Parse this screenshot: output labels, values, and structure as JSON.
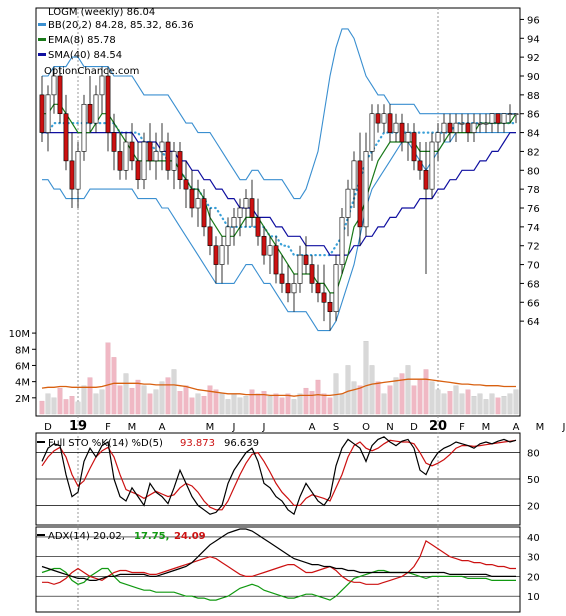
{
  "chart_data": {
    "type": "candlestick",
    "symbol_title": "LOGM (weekly) 86.04",
    "website": "OptionChance.com",
    "legend": {
      "bb": "BB(20,2) 84.28, 85.32, 86.36",
      "ema": "EMA(8) 85.78",
      "sma": "SMA(40) 84.54"
    },
    "colors": {
      "up": "#ffffff",
      "down": "#cc1111",
      "bb": "#3a8fd0",
      "bb_mid": "#3aa0d8",
      "ema": "#1a7a1a",
      "sma": "#1010a0",
      "vol_up": "#d8d8d8",
      "vol_down": "#f0b8c4",
      "vol_avg": "#d86010",
      "pctK": "#000000",
      "pctD": "#cc1111",
      "adx": "#000000",
      "plus_di": "#119911",
      "minus_di": "#cc1111"
    },
    "price_axis": {
      "ylim": [
        62,
        97
      ],
      "ticks": [
        64,
        66,
        68,
        70,
        72,
        74,
        76,
        78,
        80,
        82,
        84,
        86,
        88,
        90,
        92,
        94,
        96
      ]
    },
    "x_labels": [
      {
        "week": 1,
        "label": "D"
      },
      {
        "week": 6,
        "label": "19",
        "year": true
      },
      {
        "week": 11,
        "label": "F"
      },
      {
        "week": 15,
        "label": "M"
      },
      {
        "week": 20,
        "label": "A"
      },
      {
        "week": 28,
        "label": "M"
      },
      {
        "week": 32,
        "label": "J"
      },
      {
        "week": 37,
        "label": "J"
      },
      {
        "week": 45,
        "label": "A"
      },
      {
        "week": 49,
        "label": "S"
      },
      {
        "week": 54,
        "label": "O"
      },
      {
        "week": 58,
        "label": "N"
      },
      {
        "week": 62,
        "label": "D"
      },
      {
        "week": 66,
        "label": "20",
        "year": true
      },
      {
        "week": 70,
        "label": "F"
      },
      {
        "week": 74,
        "label": "M"
      },
      {
        "week": 79,
        "label": "A"
      },
      {
        "week": 83,
        "label": "M"
      },
      {
        "week": 87,
        "label": "J"
      },
      {
        "week": 91,
        "label": "J"
      },
      {
        "week": 96,
        "label": "A"
      }
    ],
    "year_weeks": [
      6,
      66
    ],
    "ohlc": [
      [
        88,
        90,
        83,
        84
      ],
      [
        84,
        89,
        82,
        88
      ],
      [
        88,
        91,
        86,
        90
      ],
      [
        90,
        91,
        85,
        86
      ],
      [
        86,
        88,
        80,
        81
      ],
      [
        81,
        84,
        76,
        78
      ],
      [
        78,
        83,
        76,
        82
      ],
      [
        82,
        88,
        81,
        87
      ],
      [
        87,
        90,
        84,
        85
      ],
      [
        85,
        89,
        84,
        88
      ],
      [
        88,
        91,
        86,
        90
      ],
      [
        90,
        91,
        82,
        84
      ],
      [
        84,
        86,
        80,
        82
      ],
      [
        82,
        84,
        79,
        80
      ],
      [
        80,
        84,
        79,
        83
      ],
      [
        83,
        85,
        80,
        81
      ],
      [
        81,
        83,
        78,
        79
      ],
      [
        79,
        84,
        78,
        83
      ],
      [
        83,
        85,
        80,
        81
      ],
      [
        81,
        84,
        79,
        82
      ],
      [
        82,
        85,
        80,
        83
      ],
      [
        83,
        84,
        79,
        80
      ],
      [
        80,
        83,
        78,
        82
      ],
      [
        82,
        83,
        78,
        79
      ],
      [
        79,
        81,
        76,
        78
      ],
      [
        78,
        80,
        75,
        76
      ],
      [
        76,
        79,
        74,
        77
      ],
      [
        77,
        78,
        73,
        74
      ],
      [
        74,
        76,
        71,
        72
      ],
      [
        72,
        73,
        68,
        70
      ],
      [
        70,
        73,
        68,
        72
      ],
      [
        72,
        75,
        70,
        74
      ],
      [
        74,
        76,
        72,
        75
      ],
      [
        75,
        77,
        73,
        76
      ],
      [
        76,
        78,
        74,
        77
      ],
      [
        77,
        79,
        74,
        75
      ],
      [
        75,
        77,
        72,
        73
      ],
      [
        73,
        74,
        70,
        71
      ],
      [
        71,
        73,
        69,
        72
      ],
      [
        72,
        73,
        68,
        69
      ],
      [
        69,
        71,
        67,
        68
      ],
      [
        68,
        70,
        66,
        67
      ],
      [
        67,
        69,
        65,
        68
      ],
      [
        68,
        72,
        67,
        71
      ],
      [
        71,
        73,
        69,
        70
      ],
      [
        70,
        71,
        67,
        68
      ],
      [
        68,
        70,
        66,
        67
      ],
      [
        67,
        70,
        64,
        66
      ],
      [
        66,
        67,
        63,
        65
      ],
      [
        65,
        71,
        64,
        70
      ],
      [
        70,
        76,
        69,
        75
      ],
      [
        75,
        79,
        73,
        78
      ],
      [
        78,
        82,
        76,
        81
      ],
      [
        81,
        84,
        72,
        74
      ],
      [
        74,
        84,
        73,
        82
      ],
      [
        82,
        87,
        81,
        86
      ],
      [
        86,
        87,
        84,
        85
      ],
      [
        85,
        87,
        84,
        86
      ],
      [
        86,
        87,
        83,
        84
      ],
      [
        84,
        86,
        83,
        85
      ],
      [
        85,
        86,
        82,
        83
      ],
      [
        83,
        85,
        81,
        84
      ],
      [
        84,
        85,
        80,
        81
      ],
      [
        81,
        83,
        79,
        80
      ],
      [
        80,
        83,
        69,
        78
      ],
      [
        78,
        84,
        77,
        83
      ],
      [
        83,
        85,
        81,
        84
      ],
      [
        84,
        86,
        83,
        85
      ],
      [
        85,
        86,
        83,
        84
      ],
      [
        84,
        86,
        83,
        85
      ],
      [
        85,
        86,
        84,
        85
      ],
      [
        85,
        86,
        83,
        84
      ],
      [
        84,
        86,
        83,
        85
      ],
      [
        85,
        86,
        84,
        85
      ],
      [
        85,
        86,
        84,
        85
      ],
      [
        85,
        86,
        84,
        86
      ],
      [
        86,
        86,
        84,
        85
      ],
      [
        85,
        86,
        84,
        86
      ],
      [
        86,
        87,
        85,
        86
      ],
      [
        86,
        86,
        85,
        86
      ]
    ],
    "bb_upper": [
      90,
      90,
      91,
      91,
      91,
      92,
      92,
      91,
      91,
      91,
      91,
      91,
      90,
      90,
      90,
      90,
      89,
      88,
      88,
      88,
      88,
      88,
      87,
      86,
      85,
      85,
      84,
      84,
      84,
      83,
      82,
      81,
      80,
      79,
      79,
      80,
      80,
      79,
      79,
      79,
      79,
      78,
      77,
      77,
      78,
      80,
      82,
      86,
      90,
      93,
      95,
      95,
      94,
      92,
      90,
      89,
      88,
      88,
      87,
      87,
      87,
      87,
      87,
      86,
      86,
      86,
      86,
      86,
      86,
      86,
      86,
      86,
      86,
      86,
      86,
      86,
      86,
      86,
      86,
      86
    ],
    "bb_lower": [
      79,
      79,
      78,
      78,
      77,
      77,
      77,
      77,
      78,
      78,
      78,
      78,
      78,
      78,
      78,
      78,
      77,
      77,
      77,
      77,
      76,
      76,
      75,
      74,
      73,
      72,
      71,
      70,
      69,
      68,
      68,
      68,
      68,
      69,
      70,
      70,
      69,
      68,
      68,
      67,
      66,
      65,
      65,
      65,
      65,
      64,
      63,
      63,
      63,
      64,
      66,
      68,
      70,
      73,
      76,
      78,
      79,
      80,
      81,
      82,
      83,
      83,
      82,
      81,
      80,
      81,
      82,
      83,
      83,
      84,
      84,
      84,
      84,
      84,
      84,
      84,
      84,
      84,
      84,
      84
    ],
    "bb_mid": [
      84,
      84,
      85,
      85,
      85,
      85,
      85,
      85,
      85,
      85,
      85,
      85,
      85,
      84,
      84,
      84,
      84,
      83,
      83,
      82,
      82,
      81,
      81,
      80,
      79,
      78,
      78,
      77,
      76,
      76,
      75,
      74,
      74,
      74,
      74,
      74,
      74,
      74,
      73,
      73,
      72,
      72,
      71,
      71,
      71,
      71,
      71,
      71,
      71,
      72,
      73,
      75,
      77,
      79,
      81,
      82,
      83,
      84,
      84,
      84,
      84,
      84,
      84,
      84,
      84,
      84,
      84,
      84,
      84,
      85,
      85,
      85,
      85,
      85,
      85,
      85,
      85,
      85,
      85,
      85
    ],
    "ema8": [
      86,
      86,
      87,
      87,
      86,
      85,
      84,
      84,
      84,
      85,
      86,
      86,
      85,
      84,
      83,
      82,
      81,
      81,
      81,
      81,
      81,
      81,
      81,
      80,
      79,
      78,
      78,
      77,
      75,
      74,
      73,
      73,
      73,
      74,
      75,
      75,
      75,
      74,
      73,
      72,
      71,
      70,
      69,
      69,
      69,
      69,
      68,
      68,
      67,
      67,
      69,
      71,
      74,
      75,
      77,
      79,
      81,
      82,
      83,
      83,
      83,
      83,
      83,
      82,
      82,
      82,
      82,
      83,
      84,
      84,
      84,
      84,
      84,
      85,
      85,
      85,
      85,
      85,
      85,
      86
    ],
    "sma40": [
      84,
      84,
      84,
      84,
      84,
      84,
      84,
      84,
      84,
      84,
      84,
      84,
      84,
      84,
      84,
      84,
      83,
      83,
      83,
      83,
      82,
      82,
      82,
      81,
      81,
      80,
      80,
      79,
      79,
      78,
      78,
      77,
      77,
      76,
      76,
      76,
      75,
      75,
      75,
      74,
      74,
      73,
      73,
      73,
      72,
      72,
      72,
      72,
      71,
      71,
      71,
      71,
      72,
      72,
      73,
      73,
      74,
      74,
      75,
      75,
      76,
      76,
      76,
      77,
      77,
      77,
      78,
      78,
      79,
      79,
      80,
      80,
      80,
      81,
      81,
      82,
      82,
      83,
      84,
      84
    ],
    "volume_axis": {
      "ylim": [
        0,
        11
      ],
      "ticks": [
        2,
        4,
        6,
        8,
        10
      ],
      "tick_labels": [
        "2M",
        "4M",
        "6M",
        "8M",
        "10M"
      ]
    },
    "volume": [
      1.6,
      2.5,
      2.0,
      3.2,
      1.8,
      2.2,
      1.5,
      3.5,
      4.5,
      2.5,
      3.0,
      8.8,
      7.0,
      3.5,
      5.0,
      3.2,
      4.2,
      3.5,
      2.5,
      3.0,
      4.0,
      4.5,
      5.5,
      2.8,
      3.5,
      2.0,
      2.5,
      2.2,
      3.5,
      3.0,
      2.5,
      1.8,
      2.5,
      2.0,
      2.2,
      3.0,
      2.5,
      2.8,
      2.2,
      2.5,
      2.0,
      2.5,
      1.8,
      2.5,
      3.2,
      2.8,
      4.2,
      2.5,
      2.0,
      5.0,
      2.5,
      6.0,
      4.0,
      3.5,
      9.0,
      6.0,
      4.0,
      2.5,
      3.5,
      4.5,
      5.0,
      6.0,
      3.5,
      4.2,
      5.5,
      4.0,
      3.0,
      2.5,
      2.8,
      3.5,
      2.5,
      3.0,
      2.2,
      2.5,
      1.8,
      2.5,
      2.0,
      2.2,
      2.5,
      3.0
    ],
    "volume_avg": [
      3.2,
      3.3,
      3.3,
      3.4,
      3.4,
      3.3,
      3.3,
      3.3,
      3.3,
      3.3,
      3.4,
      3.6,
      3.8,
      3.8,
      3.8,
      3.8,
      3.8,
      3.7,
      3.7,
      3.6,
      3.6,
      3.6,
      3.6,
      3.5,
      3.4,
      3.2,
      3.0,
      2.9,
      2.8,
      2.7,
      2.6,
      2.5,
      2.5,
      2.5,
      2.4,
      2.4,
      2.4,
      2.4,
      2.3,
      2.3,
      2.3,
      2.3,
      2.2,
      2.3,
      2.3,
      2.3,
      2.4,
      2.3,
      2.3,
      2.4,
      2.5,
      2.8,
      3.0,
      3.2,
      3.5,
      3.7,
      3.8,
      3.9,
      4.0,
      4.1,
      4.2,
      4.3,
      4.3,
      4.3,
      4.3,
      4.2,
      4.1,
      4.0,
      3.9,
      3.8,
      3.7,
      3.7,
      3.6,
      3.6,
      3.5,
      3.5,
      3.5,
      3.4,
      3.4,
      3.4
    ],
    "stoch_legend": {
      "label": "Full STO %K(14) %D(5)",
      "k_value": "93.873",
      "d_value": "96.639"
    },
    "stoch_axis": {
      "ylim": [
        0,
        100
      ],
      "ticks": [
        20,
        50,
        80
      ]
    },
    "pctK": [
      70,
      85,
      90,
      88,
      55,
      30,
      35,
      70,
      85,
      75,
      88,
      92,
      50,
      30,
      25,
      40,
      30,
      20,
      45,
      35,
      30,
      22,
      40,
      60,
      45,
      30,
      20,
      15,
      10,
      12,
      20,
      45,
      60,
      70,
      80,
      85,
      70,
      45,
      40,
      30,
      25,
      15,
      10,
      30,
      45,
      35,
      25,
      20,
      30,
      65,
      85,
      95,
      90,
      85,
      70,
      88,
      95,
      98,
      92,
      88,
      93,
      95,
      85,
      60,
      55,
      70,
      80,
      85,
      88,
      92,
      90,
      88,
      85,
      90,
      92,
      90,
      93,
      95,
      92,
      94
    ],
    "pctD": [
      65,
      75,
      82,
      86,
      75,
      55,
      42,
      48,
      62,
      75,
      82,
      86,
      75,
      55,
      38,
      35,
      32,
      28,
      32,
      36,
      33,
      30,
      32,
      40,
      45,
      42,
      35,
      25,
      18,
      15,
      15,
      25,
      40,
      55,
      68,
      78,
      80,
      70,
      58,
      45,
      35,
      28,
      20,
      20,
      28,
      32,
      30,
      28,
      25,
      40,
      55,
      75,
      88,
      92,
      85,
      82,
      85,
      90,
      94,
      93,
      92,
      92,
      90,
      80,
      68,
      65,
      68,
      72,
      78,
      85,
      88,
      88,
      87,
      88,
      89,
      90,
      91,
      92,
      93,
      94
    ],
    "adx_legend": {
      "label": "ADX(14) 20.02,",
      "plus_value": "17.75,",
      "minus_value": "24.09"
    },
    "adx_axis": {
      "ylim": [
        3,
        44
      ],
      "ticks": [
        10,
        20,
        30,
        40
      ]
    },
    "adx": [
      25,
      24,
      23,
      22,
      21,
      20,
      19,
      19,
      18,
      18,
      19,
      20,
      20,
      21,
      21,
      21,
      21,
      21,
      20,
      20,
      21,
      22,
      23,
      24,
      25,
      27,
      30,
      33,
      36,
      38,
      40,
      42,
      43,
      44,
      44,
      43,
      41,
      39,
      37,
      35,
      33,
      31,
      29,
      28,
      27,
      26,
      26,
      25,
      25,
      24,
      24,
      23,
      23,
      22,
      22,
      22,
      22,
      22,
      22,
      22,
      22,
      22,
      22,
      22,
      22,
      22,
      22,
      22,
      21,
      21,
      21,
      21,
      21,
      21,
      21,
      20,
      20,
      20,
      20,
      20
    ],
    "plus_di": [
      22,
      23,
      24,
      24,
      22,
      18,
      16,
      17,
      20,
      22,
      24,
      24,
      20,
      17,
      16,
      15,
      14,
      13,
      13,
      12,
      12,
      12,
      12,
      11,
      10,
      10,
      9,
      9,
      8,
      8,
      9,
      10,
      12,
      14,
      15,
      16,
      15,
      13,
      12,
      11,
      10,
      9,
      9,
      10,
      11,
      11,
      10,
      9,
      8,
      10,
      13,
      16,
      19,
      20,
      21,
      22,
      23,
      23,
      22,
      22,
      22,
      22,
      21,
      20,
      19,
      20,
      20,
      20,
      20,
      20,
      20,
      19,
      19,
      19,
      19,
      18,
      18,
      18,
      18,
      18
    ],
    "minus_di": [
      17,
      17,
      16,
      17,
      19,
      22,
      24,
      22,
      20,
      19,
      18,
      20,
      22,
      23,
      23,
      22,
      22,
      22,
      21,
      21,
      22,
      23,
      24,
      25,
      26,
      27,
      28,
      29,
      30,
      29,
      27,
      25,
      23,
      21,
      20,
      20,
      21,
      22,
      23,
      24,
      25,
      26,
      26,
      24,
      22,
      22,
      23,
      24,
      25,
      23,
      20,
      18,
      17,
      17,
      16,
      16,
      16,
      17,
      18,
      19,
      20,
      22,
      25,
      30,
      38,
      36,
      34,
      32,
      30,
      29,
      28,
      28,
      27,
      27,
      26,
      26,
      25,
      25,
      24,
      24
    ]
  }
}
